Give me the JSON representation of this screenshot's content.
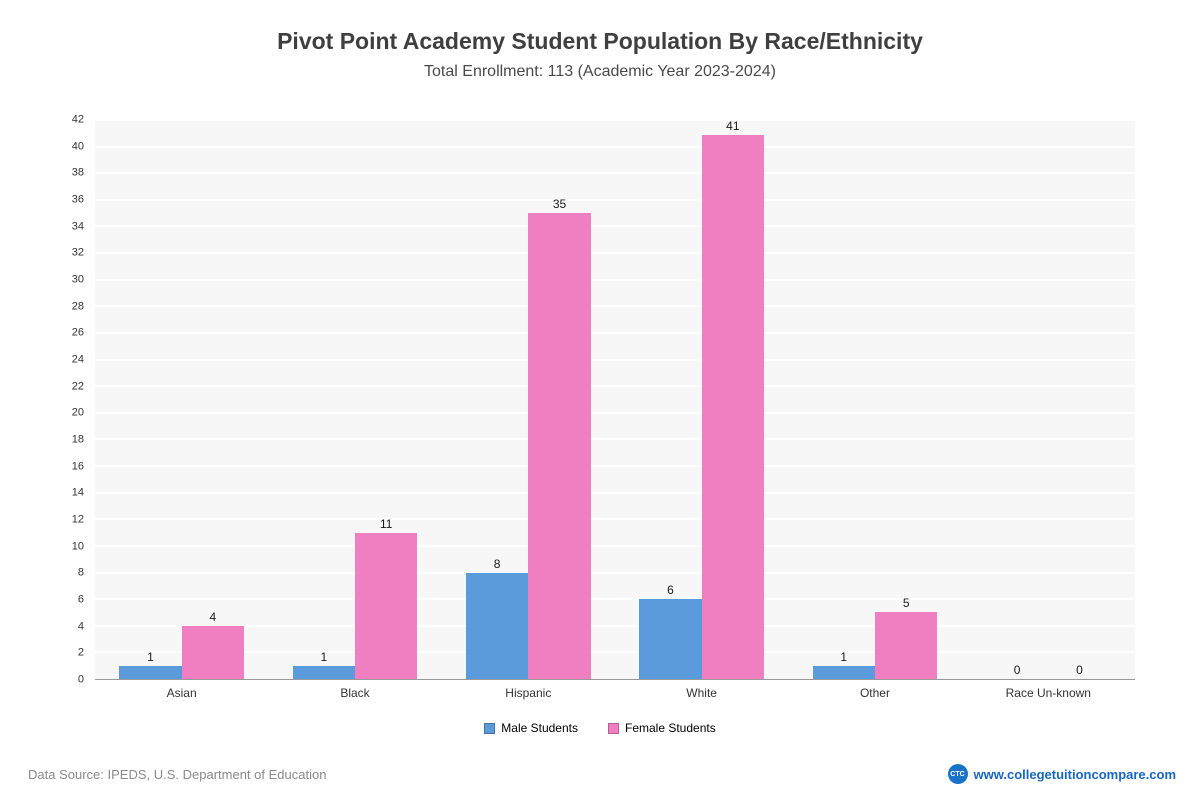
{
  "header": {
    "title": "Pivot Point Academy Student Population By Race/Ethnicity",
    "subtitle": "Total Enrollment: 113 (Academic Year 2023-2024)"
  },
  "chart_data": {
    "type": "bar",
    "categories": [
      "Asian",
      "Black",
      "Hispanic",
      "White",
      "Other",
      "Race Un-known"
    ],
    "series": [
      {
        "name": "Male Students",
        "color": "#5b9bdb",
        "values": [
          1,
          1,
          8,
          6,
          1,
          0
        ]
      },
      {
        "name": "Female Students",
        "color": "#ef7fc1",
        "values": [
          4,
          11,
          35,
          41,
          5,
          0
        ]
      }
    ],
    "title": "Pivot Point Academy Student Population By Race/Ethnicity",
    "subtitle": "Total Enrollment: 113 (Academic Year 2023-2024)",
    "xlabel": "",
    "ylabel": "",
    "ylim": [
      0,
      42
    ],
    "ytick_step": 2,
    "grid": true,
    "legend_position": "bottom",
    "plot_background": "#f7f7f7"
  },
  "footer": {
    "source": "Data Source: IPEDS, U.S. Department of Education",
    "logo_text": "CTC",
    "website": "www.collegetuitioncompare.com"
  }
}
